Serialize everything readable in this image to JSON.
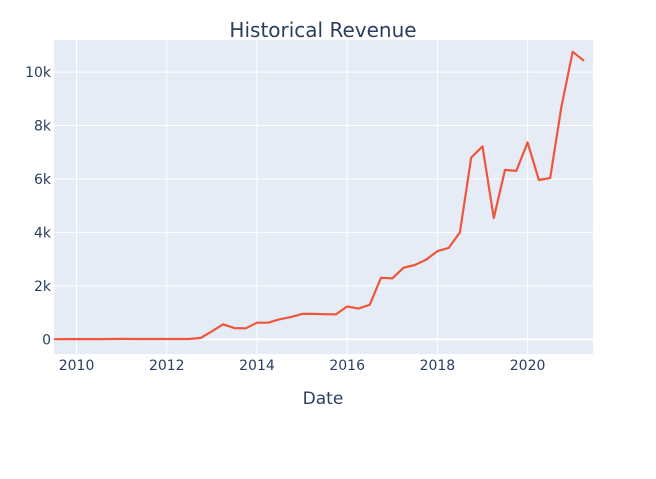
{
  "chart_data": {
    "type": "line",
    "title": "Historical Revenue",
    "xlabel": "Date",
    "ylabel": "",
    "x_tick_labels": [
      "2010",
      "2012",
      "2014",
      "2016",
      "2018",
      "2020"
    ],
    "y_tick_labels": [
      "0",
      "2k",
      "4k",
      "6k",
      "8k",
      "10k"
    ],
    "x_ticks": [
      2010,
      2012,
      2014,
      2016,
      2018,
      2020
    ],
    "y_ticks": [
      0,
      2000,
      4000,
      6000,
      8000,
      10000
    ],
    "xlim": [
      2009.5,
      2021.45
    ],
    "ylim": [
      -550,
      11200
    ],
    "grid": true,
    "colors": {
      "line": "#ef553b",
      "plot_bg": "#e5ecf6",
      "grid": "#ffffff",
      "text": "#2a3f5f"
    },
    "series": [
      {
        "x": [
          2009.5,
          2009.75,
          2010.0,
          2010.25,
          2010.5,
          2010.75,
          2011.0,
          2011.25,
          2011.5,
          2011.75,
          2012.0,
          2012.25,
          2012.5,
          2012.75,
          2013.0,
          2013.25,
          2013.5,
          2013.75,
          2014.0,
          2014.25,
          2014.5,
          2014.75,
          2015.0,
          2015.25,
          2015.5,
          2015.75,
          2016.0,
          2016.25,
          2016.5,
          2016.75,
          2017.0,
          2017.25,
          2017.5,
          2017.75,
          2018.0,
          2018.25,
          2018.5,
          2018.75,
          2019.0,
          2019.25,
          2019.5,
          2019.75,
          2020.0,
          2020.25,
          2020.5,
          2020.75,
          2021.0,
          2021.25
        ],
        "y": [
          5,
          8,
          6,
          7,
          9,
          10,
          14,
          13,
          11,
          10,
          12,
          11,
          13,
          50,
          300,
          560,
          420,
          410,
          620,
          620,
          750,
          830,
          950,
          950,
          940,
          930,
          1230,
          1150,
          1290,
          2300,
          2280,
          2680,
          2780,
          2980,
          3300,
          3420,
          4000,
          6800,
          7220,
          4540,
          6340,
          6300,
          7370,
          5960,
          6040,
          8700,
          10760,
          10420
        ]
      }
    ]
  }
}
